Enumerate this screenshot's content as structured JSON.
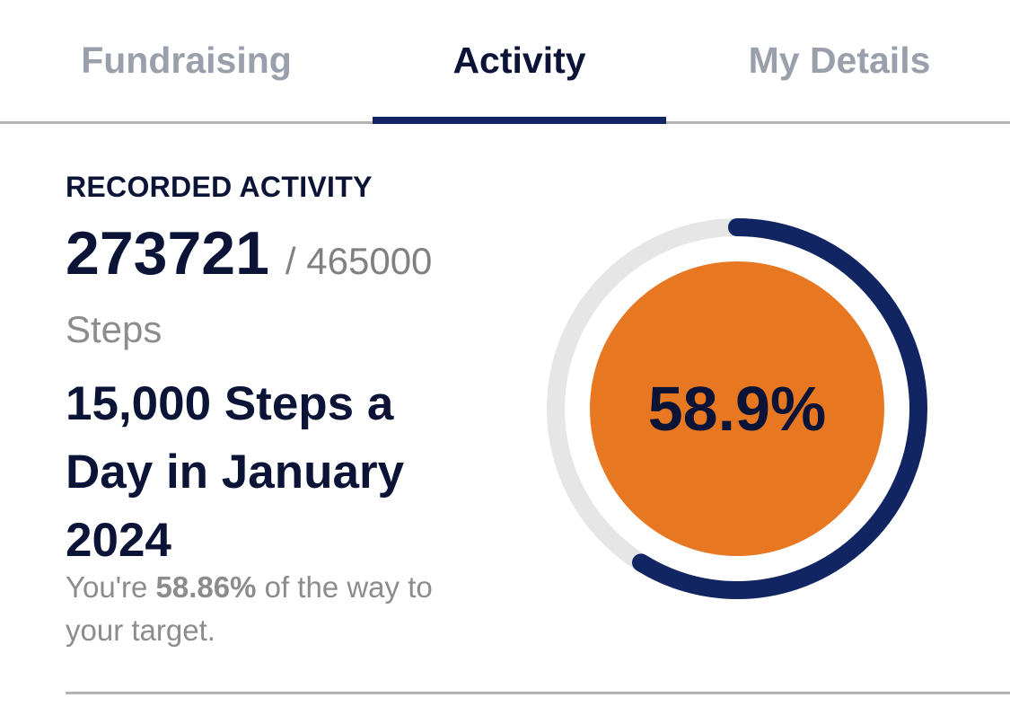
{
  "tabs": [
    {
      "label": "Fundraising",
      "active": false
    },
    {
      "label": "Activity",
      "active": true
    },
    {
      "label": "My Details",
      "active": false
    }
  ],
  "activity": {
    "section_label": "RECORDED ACTIVITY",
    "current_value": "273721",
    "target_value": "/ 465000",
    "unit": "Steps",
    "challenge_title": "15,000 Steps a Day in January 2024",
    "progress_prefix": "You're ",
    "progress_percent": "58.86%",
    "progress_suffix": " of the way to your target."
  },
  "ring": {
    "label": "58.9%",
    "progress_fraction": 0.5886,
    "track_color": "#e6e6e6",
    "progress_color": "#112562",
    "fill_color": "#e87722"
  },
  "colors": {
    "primary_text": "#0b1437",
    "muted_text": "#8c8c8c",
    "inactive_tab": "#9aa0ab",
    "accent": "#112562"
  }
}
